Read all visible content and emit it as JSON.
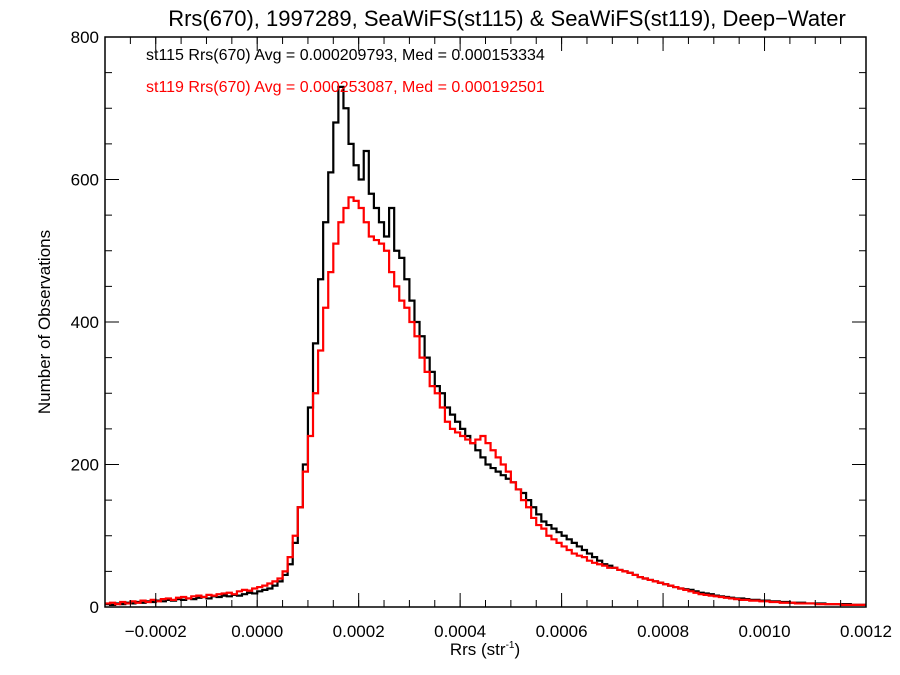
{
  "chart_data": {
    "type": "histogram-step",
    "title": "Rrs(670), 1997289, SeaWiFS(st115) & SeaWiFS(st119), Deep−Water",
    "xlabel": "Rrs (str",
    "xlabel_superscript": "-1",
    "xlabel_suffix": ")",
    "ylabel": "Number of Observations",
    "xlim": [
      -0.0003,
      0.0012
    ],
    "ylim": [
      0,
      800
    ],
    "x_ticks": [
      -0.0002,
      0.0,
      0.0002,
      0.0004,
      0.0006,
      0.0008,
      0.001,
      0.0012
    ],
    "x_tick_labels": [
      "−0.0002",
      "0.0000",
      "0.0002",
      "0.0004",
      "0.0006",
      "0.0008",
      "0.0010",
      "0.0012"
    ],
    "x_minor_step": 5e-05,
    "y_ticks": [
      0,
      200,
      400,
      600,
      800
    ],
    "y_tick_labels": [
      "0",
      "200",
      "400",
      "600",
      "800"
    ],
    "y_minor_step": 50,
    "grid": false,
    "legend_position": "top-left",
    "bin_start": -0.0003,
    "bin_width": 1e-05,
    "series": [
      {
        "name": "st115",
        "legend": "st115 Rrs(670) Avg = 0.000209793, Med = 0.000153334",
        "color": "#000000",
        "values": [
          4,
          3,
          5,
          4,
          6,
          5,
          7,
          6,
          8,
          7,
          9,
          8,
          10,
          9,
          11,
          10,
          12,
          11,
          13,
          14,
          12,
          15,
          14,
          16,
          15,
          17,
          16,
          18,
          20,
          19,
          22,
          24,
          26,
          30,
          36,
          45,
          60,
          90,
          140,
          200,
          280,
          370,
          460,
          540,
          610,
          680,
          730,
          700,
          650,
          620,
          600,
          640,
          580,
          560,
          540,
          520,
          560,
          500,
          490,
          460,
          430,
          400,
          380,
          350,
          330,
          310,
          300,
          280,
          270,
          260,
          250,
          240,
          230,
          220,
          210,
          200,
          195,
          190,
          185,
          180,
          175,
          165,
          160,
          150,
          140,
          130,
          120,
          115,
          110,
          105,
          100,
          95,
          90,
          85,
          80,
          75,
          70,
          65,
          60,
          58,
          55,
          52,
          50,
          48,
          45,
          42,
          40,
          38,
          36,
          34,
          32,
          30,
          28,
          26,
          25,
          24,
          22,
          20,
          19,
          18,
          16,
          15,
          14,
          13,
          12,
          12,
          11,
          10,
          10,
          9,
          9,
          8,
          8,
          7,
          7,
          6,
          6,
          6,
          5,
          5,
          5,
          5,
          4,
          4,
          4,
          4,
          4,
          3,
          3,
          3
        ]
      },
      {
        "name": "st119",
        "legend": "st119 Rrs(670) Avg = 0.000253087, Med = 0.000192501",
        "color": "#ff0000",
        "values": [
          5,
          6,
          4,
          7,
          5,
          8,
          6,
          9,
          7,
          10,
          8,
          11,
          12,
          10,
          13,
          14,
          12,
          15,
          16,
          14,
          17,
          16,
          18,
          19,
          20,
          18,
          22,
          24,
          23,
          26,
          28,
          30,
          33,
          36,
          40,
          50,
          70,
          100,
          140,
          190,
          240,
          300,
          360,
          420,
          470,
          510,
          540,
          560,
          575,
          570,
          560,
          540,
          520,
          515,
          510,
          500,
          470,
          450,
          430,
          420,
          400,
          380,
          350,
          330,
          310,
          300,
          280,
          260,
          250,
          245,
          240,
          235,
          230,
          235,
          240,
          230,
          220,
          210,
          200,
          190,
          175,
          165,
          150,
          140,
          125,
          115,
          110,
          100,
          95,
          90,
          85,
          80,
          75,
          72,
          70,
          65,
          62,
          60,
          58,
          55,
          55,
          52,
          50,
          48,
          45,
          42,
          40,
          38,
          36,
          34,
          32,
          30,
          28,
          26,
          24,
          22,
          20,
          18,
          17,
          16,
          15,
          14,
          13,
          12,
          11,
          10,
          10,
          9,
          9,
          8,
          8,
          7,
          7,
          6,
          6,
          6,
          5,
          5,
          5,
          5,
          4,
          4,
          4,
          4,
          4,
          3,
          3,
          3,
          3,
          3
        ]
      }
    ]
  }
}
